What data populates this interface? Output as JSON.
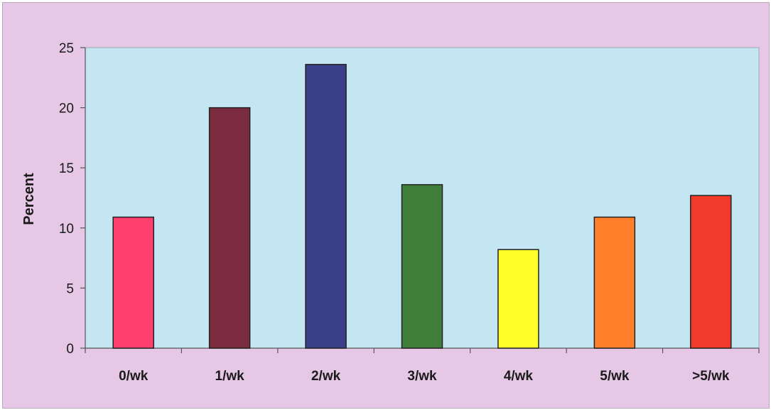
{
  "chart_data": {
    "type": "bar",
    "title": "",
    "xlabel": "",
    "ylabel": "Percent",
    "ylim": [
      0,
      25
    ],
    "yticks": [
      0,
      5,
      10,
      15,
      20,
      25
    ],
    "grid": false,
    "legend": "none",
    "categories": [
      "0/wk",
      "1/wk",
      "2/wk",
      "3/wk",
      "4/wk",
      "5/wk",
      ">5/wk"
    ],
    "values": [
      10.9,
      20.0,
      23.6,
      13.6,
      8.2,
      10.9,
      12.7
    ],
    "bar_colors": [
      "#ff3f6e",
      "#7b2d3f",
      "#3a3f88",
      "#3f7f3a",
      "#ffff2a",
      "#ff7f2a",
      "#f23a2a"
    ]
  },
  "style": {
    "background": "#e6c8e6",
    "plot_background": "#c4e6f3",
    "axis_color": "#555555"
  }
}
